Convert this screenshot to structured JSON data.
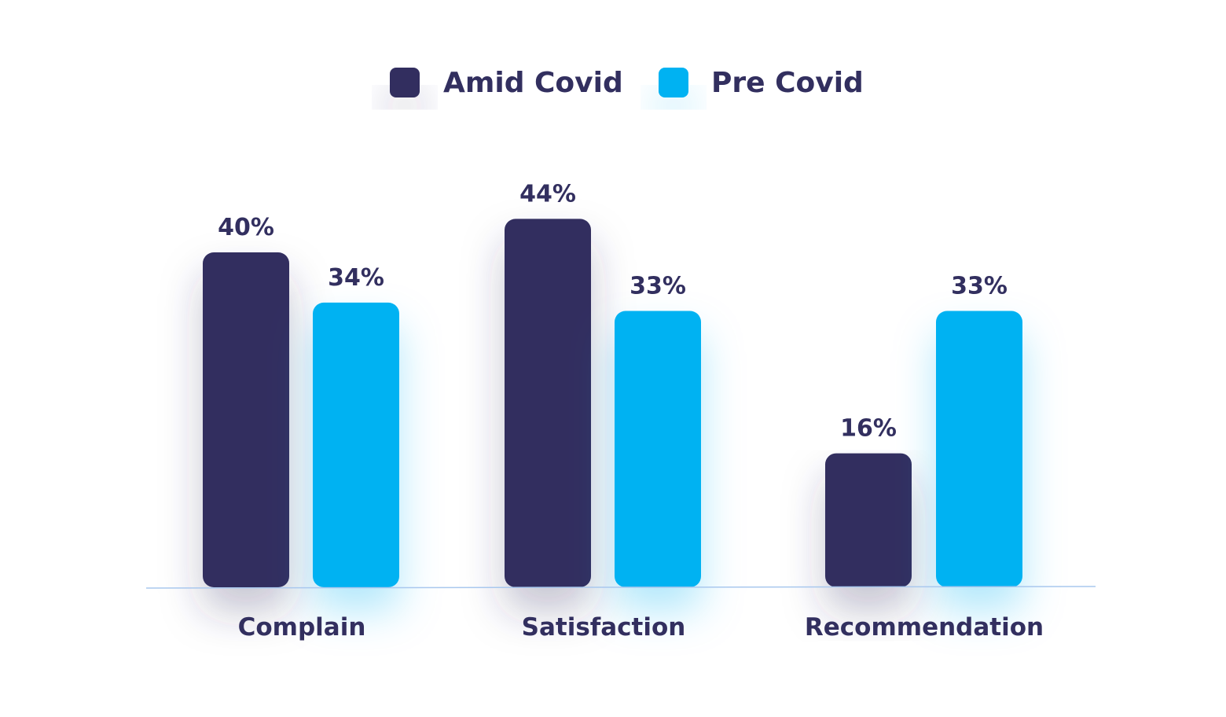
{
  "chart_data": {
    "type": "bar",
    "categories": [
      "Complain",
      "Satisfaction",
      "Recommendation"
    ],
    "series": [
      {
        "name": "Amid Covid",
        "color": "#322f5f",
        "values": [
          40,
          44,
          16
        ],
        "labels": [
          "40%",
          "44%",
          "16%"
        ]
      },
      {
        "name": "Pre Covid",
        "color": "#04b2f2",
        "values": [
          34,
          33,
          33
        ],
        "labels": [
          "34%",
          "33%",
          "33%"
        ]
      }
    ],
    "unit": "%",
    "ylim": [
      0,
      44
    ],
    "legend_position": "top-center",
    "grid": false,
    "baseline_color": "#a9c8ee"
  }
}
